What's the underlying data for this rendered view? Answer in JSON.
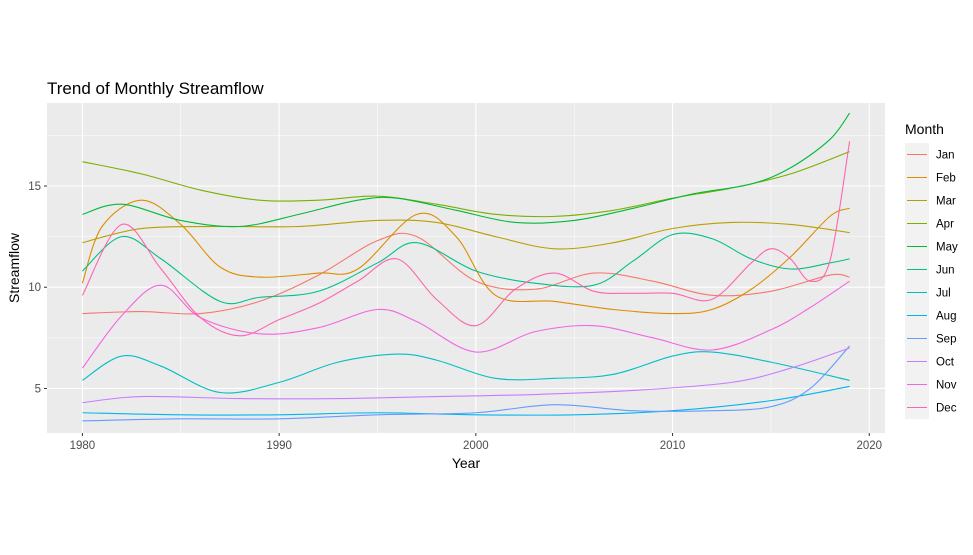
{
  "chart_data": {
    "type": "line",
    "title": "Trend of Monthly Streamflow",
    "xlabel": "Year",
    "ylabel": "Streamflow",
    "xlim": [
      1978.2,
      2020.8
    ],
    "ylim": [
      2.8,
      19.1
    ],
    "xticks": [
      1980,
      1990,
      2000,
      2010,
      2020
    ],
    "yticks": [
      5,
      10,
      15
    ],
    "grid": true,
    "legend": {
      "title": "Month",
      "position": "right"
    },
    "series": [
      {
        "name": "Jan",
        "color": "#F8766D",
        "x": [
          1980,
          1983,
          1986,
          1989,
          1992,
          1995,
          1997,
          2000,
          2003,
          2006,
          2009,
          2012,
          2015,
          2018,
          2019
        ],
        "y": [
          8.7,
          8.8,
          8.7,
          9.3,
          10.6,
          12.3,
          12.5,
          10.3,
          9.9,
          10.7,
          10.3,
          9.6,
          9.8,
          10.6,
          10.5
        ]
      },
      {
        "name": "Feb",
        "color": "#DE8C00",
        "x": [
          1980,
          1981,
          1983,
          1985,
          1987,
          1989,
          1992,
          1994,
          1997,
          1999,
          2001,
          2004,
          2007,
          2010,
          2012,
          2014,
          2016,
          2018,
          2019
        ],
        "y": [
          10.2,
          13.0,
          14.3,
          13.1,
          11.0,
          10.5,
          10.7,
          10.9,
          13.6,
          12.5,
          9.6,
          9.3,
          8.9,
          8.7,
          8.9,
          9.9,
          11.5,
          13.5,
          13.9
        ]
      },
      {
        "name": "Mar",
        "color": "#B79F00",
        "x": [
          1980,
          1983,
          1987,
          1991,
          1995,
          1998,
          2001,
          2004,
          2007,
          2010,
          2013,
          2016,
          2019
        ],
        "y": [
          12.2,
          12.9,
          13.0,
          13.0,
          13.3,
          13.2,
          12.5,
          11.9,
          12.2,
          12.9,
          13.2,
          13.1,
          12.7
        ]
      },
      {
        "name": "Apr",
        "color": "#7CAE00",
        "x": [
          1980,
          1983,
          1986,
          1989,
          1992,
          1995,
          1998,
          2001,
          2004,
          2007,
          2010,
          2013,
          2016,
          2019
        ],
        "y": [
          16.2,
          15.6,
          14.8,
          14.3,
          14.3,
          14.5,
          14.1,
          13.6,
          13.5,
          13.8,
          14.4,
          14.9,
          15.6,
          16.7
        ]
      },
      {
        "name": "May",
        "color": "#00BA38",
        "x": [
          1980,
          1982,
          1985,
          1988,
          1991,
          1994,
          1996,
          1999,
          2002,
          2005,
          2008,
          2011,
          2014,
          2016,
          2018,
          2019
        ],
        "y": [
          13.6,
          14.1,
          13.3,
          13.0,
          13.6,
          14.3,
          14.4,
          13.8,
          13.2,
          13.3,
          13.9,
          14.6,
          15.1,
          15.9,
          17.3,
          18.6
        ]
      },
      {
        "name": "Jun",
        "color": "#00C08B",
        "x": [
          1980,
          1982,
          1984,
          1987,
          1989,
          1992,
          1995,
          1997,
          2000,
          2003,
          2006,
          2008,
          2010,
          2012,
          2014,
          2016,
          2018,
          2019
        ],
        "y": [
          10.8,
          12.5,
          11.4,
          9.3,
          9.5,
          9.8,
          11.2,
          12.2,
          10.8,
          10.2,
          10.1,
          11.3,
          12.6,
          12.4,
          11.4,
          10.9,
          11.2,
          11.4
        ]
      },
      {
        "name": "Jul",
        "color": "#00BFC4",
        "x": [
          1980,
          1982,
          1984,
          1987,
          1990,
          1993,
          1996,
          1998,
          2001,
          2004,
          2007,
          2010,
          2012,
          2015,
          2019
        ],
        "y": [
          5.4,
          6.6,
          6.1,
          4.8,
          5.3,
          6.3,
          6.7,
          6.4,
          5.5,
          5.5,
          5.7,
          6.6,
          6.8,
          6.3,
          5.4
        ]
      },
      {
        "name": "Aug",
        "color": "#00B4F0",
        "x": [
          1980,
          1985,
          1990,
          1995,
          2000,
          2005,
          2010,
          2015,
          2019
        ],
        "y": [
          3.8,
          3.7,
          3.7,
          3.8,
          3.7,
          3.7,
          3.9,
          4.4,
          5.1
        ]
      },
      {
        "name": "Sep",
        "color": "#619CFF",
        "x": [
          1980,
          1985,
          1990,
          1995,
          2000,
          2004,
          2008,
          2012,
          2015,
          2017,
          2019
        ],
        "y": [
          3.4,
          3.5,
          3.5,
          3.7,
          3.8,
          4.2,
          3.9,
          3.9,
          4.1,
          5.0,
          7.1
        ]
      },
      {
        "name": "Oct",
        "color": "#C77CFF",
        "x": [
          1980,
          1983,
          1988,
          1993,
          1998,
          2003,
          2008,
          2013,
          2016,
          2019
        ],
        "y": [
          4.3,
          4.6,
          4.5,
          4.5,
          4.6,
          4.7,
          4.9,
          5.3,
          6.0,
          7.0
        ]
      },
      {
        "name": "Nov",
        "color": "#F564E3",
        "x": [
          1980,
          1982,
          1984,
          1986,
          1989,
          1992,
          1995,
          1997,
          2000,
          2003,
          2006,
          2009,
          2012,
          2015,
          2017,
          2019
        ],
        "y": [
          6.0,
          8.6,
          10.1,
          8.5,
          7.7,
          8.0,
          8.9,
          8.3,
          6.8,
          7.8,
          8.1,
          7.5,
          6.9,
          7.9,
          9.0,
          10.3
        ]
      },
      {
        "name": "Dec",
        "color": "#FF64B0",
        "x": [
          1980,
          1982,
          1984,
          1986,
          1988,
          1990,
          1992,
          1994,
          1996,
          1998,
          2000,
          2002,
          2004,
          2006,
          2008,
          2010,
          2012,
          2014,
          2015,
          2016,
          2017,
          2018,
          2019
        ],
        "y": [
          9.6,
          13.1,
          10.9,
          8.5,
          7.6,
          8.4,
          9.2,
          10.3,
          11.4,
          9.4,
          8.1,
          9.9,
          10.7,
          9.8,
          9.7,
          9.7,
          9.4,
          11.2,
          11.9,
          11.4,
          10.3,
          11.3,
          17.2
        ]
      }
    ]
  }
}
